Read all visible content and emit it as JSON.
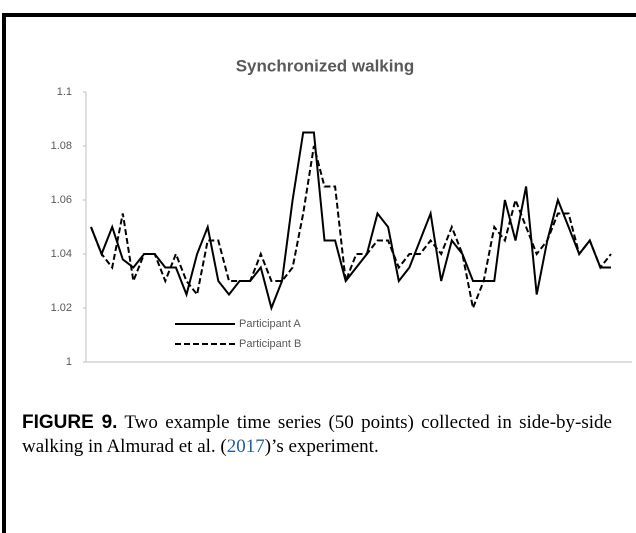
{
  "chart_data": {
    "type": "line",
    "title": "Synchronized walking",
    "ylim": [
      1,
      1.1
    ],
    "yticks": [
      1,
      1.02,
      1.04,
      1.06,
      1.08,
      1.1
    ],
    "legend": "lower-left",
    "series": [
      {
        "name": "Participant A",
        "color": "#000000",
        "style": "solid",
        "values": [
          1.05,
          1.04,
          1.05,
          1.038,
          1.035,
          1.04,
          1.04,
          1.035,
          1.035,
          1.025,
          1.04,
          1.05,
          1.03,
          1.025,
          1.03,
          1.03,
          1.035,
          1.02,
          1.03,
          1.06,
          1.085,
          1.085,
          1.045,
          1.045,
          1.03,
          1.035,
          1.04,
          1.055,
          1.05,
          1.03,
          1.035,
          1.045,
          1.055,
          1.03,
          1.045,
          1.04,
          1.03,
          1.03,
          1.03,
          1.06,
          1.045,
          1.065,
          1.025,
          1.045,
          1.06,
          1.05,
          1.04,
          1.045,
          1.035,
          1.035
        ]
      },
      {
        "name": "Participant B",
        "color": "#000000",
        "style": "dashed",
        "values": [
          1.05,
          1.04,
          1.035,
          1.055,
          1.03,
          1.04,
          1.04,
          1.03,
          1.04,
          1.03,
          1.025,
          1.045,
          1.045,
          1.03,
          1.03,
          1.03,
          1.04,
          1.03,
          1.03,
          1.035,
          1.055,
          1.08,
          1.065,
          1.065,
          1.03,
          1.04,
          1.04,
          1.045,
          1.045,
          1.035,
          1.04,
          1.04,
          1.045,
          1.04,
          1.05,
          1.04,
          1.02,
          1.03,
          1.05,
          1.045,
          1.06,
          1.05,
          1.04,
          1.045,
          1.055,
          1.055,
          1.04,
          1.045,
          1.035,
          1.04
        ]
      }
    ]
  },
  "caption": {
    "label": "FIGURE 9.",
    "text": "Two example time series (50 points) collected in side-by-side walking in Almurad et al. (",
    "link": "2017",
    "text_end": ")’s experiment."
  }
}
